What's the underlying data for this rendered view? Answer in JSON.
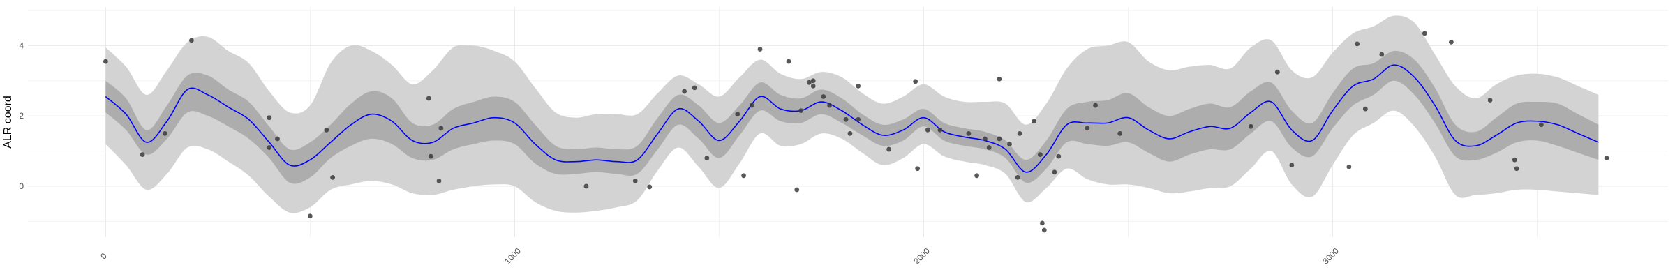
{
  "chart_data": {
    "type": "line",
    "title": "",
    "xlabel": "",
    "ylabel": "ALR coord",
    "xlim": [
      -190,
      3820
    ],
    "ylim": [
      -1.45,
      5.1
    ],
    "x_ticks": [
      0,
      1000,
      2000,
      3000
    ],
    "y_ticks": [
      0,
      2,
      4
    ],
    "grid": true,
    "series": [
      {
        "role": "posterior-mean",
        "color": "#0000ff",
        "x": [
          0,
          50,
          100,
          150,
          200,
          250,
          300,
          350,
          400,
          450,
          500,
          550,
          600,
          650,
          700,
          750,
          800,
          850,
          900,
          950,
          1000,
          1050,
          1100,
          1150,
          1200,
          1250,
          1300,
          1350,
          1400,
          1450,
          1500,
          1550,
          1600,
          1650,
          1700,
          1750,
          1800,
          1850,
          1900,
          1950,
          2000,
          2050,
          2100,
          2150,
          2200,
          2250,
          2300,
          2350,
          2400,
          2450,
          2500,
          2550,
          2600,
          2650,
          2700,
          2750,
          2800,
          2850,
          2900,
          2950,
          3000,
          3050,
          3100,
          3150,
          3200,
          3250,
          3300,
          3350,
          3400,
          3450,
          3500,
          3550,
          3600,
          3650
        ],
        "y": [
          2.55,
          2.05,
          1.25,
          1.85,
          2.75,
          2.6,
          2.25,
          1.9,
          1.25,
          0.6,
          0.75,
          1.25,
          1.75,
          2.05,
          1.85,
          1.3,
          1.25,
          1.65,
          1.8,
          1.95,
          1.8,
          1.2,
          0.75,
          0.7,
          0.75,
          0.7,
          0.75,
          1.5,
          2.2,
          1.85,
          1.3,
          1.85,
          2.55,
          2.2,
          2.15,
          2.4,
          2.15,
          1.75,
          1.45,
          1.6,
          1.95,
          1.55,
          1.4,
          1.3,
          1.05,
          0.4,
          0.9,
          1.75,
          1.8,
          1.8,
          1.95,
          1.6,
          1.35,
          1.55,
          1.7,
          1.65,
          2.1,
          2.4,
          1.6,
          1.3,
          2.15,
          2.85,
          3.05,
          3.45,
          3.1,
          2.3,
          1.3,
          1.15,
          1.45,
          1.8,
          1.85,
          1.75,
          1.5,
          1.25
        ]
      },
      {
        "role": "inner-interval",
        "color": "#adadad",
        "x": [
          0,
          50,
          100,
          150,
          200,
          250,
          300,
          350,
          400,
          450,
          500,
          550,
          600,
          650,
          700,
          750,
          800,
          850,
          900,
          950,
          1000,
          1050,
          1100,
          1150,
          1200,
          1250,
          1300,
          1350,
          1400,
          1450,
          1500,
          1550,
          1600,
          1650,
          1700,
          1750,
          1800,
          1850,
          1900,
          1950,
          2000,
          2050,
          2100,
          2150,
          2200,
          2250,
          2300,
          2350,
          2400,
          2450,
          2500,
          2550,
          2600,
          2650,
          2700,
          2750,
          2800,
          2850,
          2900,
          2950,
          3000,
          3050,
          3100,
          3150,
          3200,
          3250,
          3300,
          3350,
          3400,
          3450,
          3500,
          3550,
          3600,
          3650
        ],
        "lower": [
          2.1,
          1.6,
          0.9,
          1.35,
          2.1,
          2.0,
          1.7,
          1.35,
          0.8,
          0.1,
          0.25,
          0.8,
          1.15,
          1.35,
          1.2,
          0.8,
          0.75,
          1.05,
          1.2,
          1.3,
          1.2,
          0.65,
          0.35,
          0.35,
          0.4,
          0.35,
          0.35,
          1.05,
          1.75,
          1.35,
          0.8,
          1.45,
          2.15,
          1.85,
          1.8,
          2.05,
          1.8,
          1.45,
          1.15,
          1.3,
          1.7,
          1.3,
          1.15,
          1.05,
          0.8,
          0.1,
          0.5,
          1.25,
          1.2,
          1.15,
          1.25,
          0.95,
          0.7,
          0.9,
          1.05,
          1.05,
          1.5,
          1.85,
          1.1,
          0.85,
          1.65,
          2.3,
          2.6,
          3.0,
          2.6,
          1.8,
          0.85,
          0.75,
          0.95,
          1.25,
          1.3,
          1.15,
          0.95,
          0.75
        ],
        "upper": [
          3.0,
          2.5,
          1.6,
          2.3,
          3.15,
          3.15,
          2.75,
          2.4,
          1.7,
          1.05,
          1.25,
          1.75,
          2.35,
          2.7,
          2.5,
          1.8,
          1.75,
          2.2,
          2.4,
          2.55,
          2.4,
          1.75,
          1.15,
          1.05,
          1.1,
          1.05,
          1.15,
          1.95,
          2.6,
          2.3,
          1.8,
          2.3,
          2.95,
          2.6,
          2.5,
          2.75,
          2.5,
          2.05,
          1.75,
          1.9,
          2.2,
          1.8,
          1.65,
          1.55,
          1.3,
          0.75,
          1.3,
          2.2,
          2.4,
          2.45,
          2.65,
          2.25,
          2.0,
          2.2,
          2.35,
          2.25,
          2.7,
          2.95,
          2.15,
          1.8,
          2.65,
          3.35,
          3.5,
          3.85,
          3.6,
          2.8,
          1.75,
          1.55,
          1.95,
          2.35,
          2.4,
          2.35,
          2.05,
          1.75
        ]
      },
      {
        "role": "outer-interval",
        "color": "#d3d3d3",
        "x": [
          0,
          50,
          100,
          150,
          200,
          250,
          300,
          350,
          400,
          450,
          500,
          550,
          600,
          650,
          700,
          750,
          800,
          850,
          900,
          950,
          1000,
          1050,
          1100,
          1150,
          1200,
          1250,
          1300,
          1350,
          1400,
          1450,
          1500,
          1550,
          1600,
          1650,
          1700,
          1750,
          1800,
          1850,
          1900,
          1950,
          2000,
          2050,
          2100,
          2150,
          2200,
          2250,
          2300,
          2350,
          2400,
          2450,
          2500,
          2550,
          2600,
          2650,
          2700,
          2750,
          2800,
          2850,
          2900,
          2950,
          3000,
          3050,
          3100,
          3150,
          3200,
          3250,
          3300,
          3350,
          3400,
          3450,
          3500,
          3550,
          3600,
          3650
        ],
        "lower": [
          1.2,
          0.6,
          -0.1,
          0.35,
          1.1,
          1.05,
          0.7,
          0.3,
          -0.3,
          -0.75,
          -0.6,
          -0.1,
          0.05,
          0.15,
          0.05,
          -0.2,
          -0.25,
          -0.1,
          0.0,
          0.05,
          0.0,
          -0.45,
          -0.7,
          -0.75,
          -0.7,
          -0.6,
          -0.4,
          0.45,
          1.1,
          0.55,
          -0.05,
          0.65,
          1.5,
          1.15,
          1.2,
          1.5,
          1.35,
          0.95,
          0.6,
          0.8,
          1.2,
          0.85,
          0.7,
          0.6,
          0.35,
          -0.45,
          -0.05,
          0.5,
          0.2,
          0.05,
          0.05,
          -0.05,
          -0.2,
          -0.15,
          -0.05,
          0.0,
          0.5,
          1.0,
          0.05,
          -0.3,
          0.6,
          1.45,
          1.8,
          2.15,
          1.7,
          0.85,
          -0.25,
          -0.25,
          -0.2,
          -0.1,
          -0.1,
          -0.15,
          -0.2,
          -0.25
        ],
        "upper": [
          3.95,
          3.4,
          2.6,
          3.3,
          4.1,
          4.25,
          3.85,
          3.5,
          2.7,
          2.1,
          2.3,
          3.5,
          4.0,
          3.85,
          3.45,
          2.9,
          3.3,
          3.95,
          4.0,
          3.85,
          3.55,
          2.8,
          2.1,
          1.95,
          2.05,
          2.05,
          2.05,
          2.65,
          3.15,
          2.9,
          2.55,
          3.1,
          3.6,
          3.2,
          3.05,
          3.25,
          3.1,
          2.65,
          2.35,
          2.55,
          2.9,
          2.55,
          2.4,
          2.4,
          2.35,
          1.75,
          2.35,
          3.35,
          3.9,
          4.0,
          4.1,
          3.55,
          3.3,
          3.4,
          3.45,
          3.35,
          3.95,
          4.15,
          3.3,
          3.1,
          3.8,
          4.35,
          4.55,
          4.85,
          4.65,
          3.75,
          2.85,
          2.5,
          2.9,
          3.15,
          3.2,
          3.1,
          2.85,
          2.6
        ]
      },
      {
        "role": "observations",
        "color": "#3a3a3a",
        "points": [
          [
            0,
            3.55
          ],
          [
            90,
            0.9
          ],
          [
            145,
            1.5
          ],
          [
            210,
            4.15
          ],
          [
            400,
            1.95
          ],
          [
            400,
            1.1
          ],
          [
            420,
            1.35
          ],
          [
            500,
            -0.85
          ],
          [
            540,
            1.6
          ],
          [
            555,
            0.25
          ],
          [
            790,
            2.5
          ],
          [
            795,
            0.85
          ],
          [
            815,
            0.15
          ],
          [
            820,
            1.65
          ],
          [
            1175,
            0.0
          ],
          [
            1295,
            0.15
          ],
          [
            1330,
            -0.02
          ],
          [
            1415,
            2.7
          ],
          [
            1440,
            2.8
          ],
          [
            1470,
            0.8
          ],
          [
            1545,
            2.05
          ],
          [
            1560,
            0.3
          ],
          [
            1580,
            2.3
          ],
          [
            1600,
            3.9
          ],
          [
            1670,
            3.55
          ],
          [
            1690,
            -0.1
          ],
          [
            1700,
            2.15
          ],
          [
            1720,
            2.95
          ],
          [
            1730,
            3.0
          ],
          [
            1730,
            2.85
          ],
          [
            1755,
            2.55
          ],
          [
            1770,
            2.3
          ],
          [
            1810,
            1.9
          ],
          [
            1820,
            1.5
          ],
          [
            1840,
            1.9
          ],
          [
            1840,
            2.85
          ],
          [
            1915,
            1.05
          ],
          [
            1980,
            2.98
          ],
          [
            1985,
            0.5
          ],
          [
            2010,
            1.6
          ],
          [
            2040,
            1.6
          ],
          [
            2110,
            1.5
          ],
          [
            2130,
            0.3
          ],
          [
            2150,
            1.35
          ],
          [
            2160,
            1.1
          ],
          [
            2185,
            1.35
          ],
          [
            2185,
            3.05
          ],
          [
            2210,
            1.2
          ],
          [
            2230,
            0.25
          ],
          [
            2235,
            1.5
          ],
          [
            2270,
            1.85
          ],
          [
            2285,
            0.9
          ],
          [
            2290,
            -1.05
          ],
          [
            2295,
            -1.25
          ],
          [
            2320,
            0.4
          ],
          [
            2330,
            0.85
          ],
          [
            2400,
            1.65
          ],
          [
            2420,
            2.3
          ],
          [
            2480,
            1.5
          ],
          [
            2800,
            1.7
          ],
          [
            2865,
            3.25
          ],
          [
            2900,
            0.6
          ],
          [
            3040,
            0.55
          ],
          [
            3060,
            4.05
          ],
          [
            3080,
            2.2
          ],
          [
            3120,
            3.75
          ],
          [
            3225,
            4.35
          ],
          [
            3290,
            4.1
          ],
          [
            3385,
            2.45
          ],
          [
            3445,
            0.75
          ],
          [
            3450,
            0.5
          ],
          [
            3510,
            1.75
          ],
          [
            3670,
            0.8
          ]
        ]
      }
    ]
  }
}
